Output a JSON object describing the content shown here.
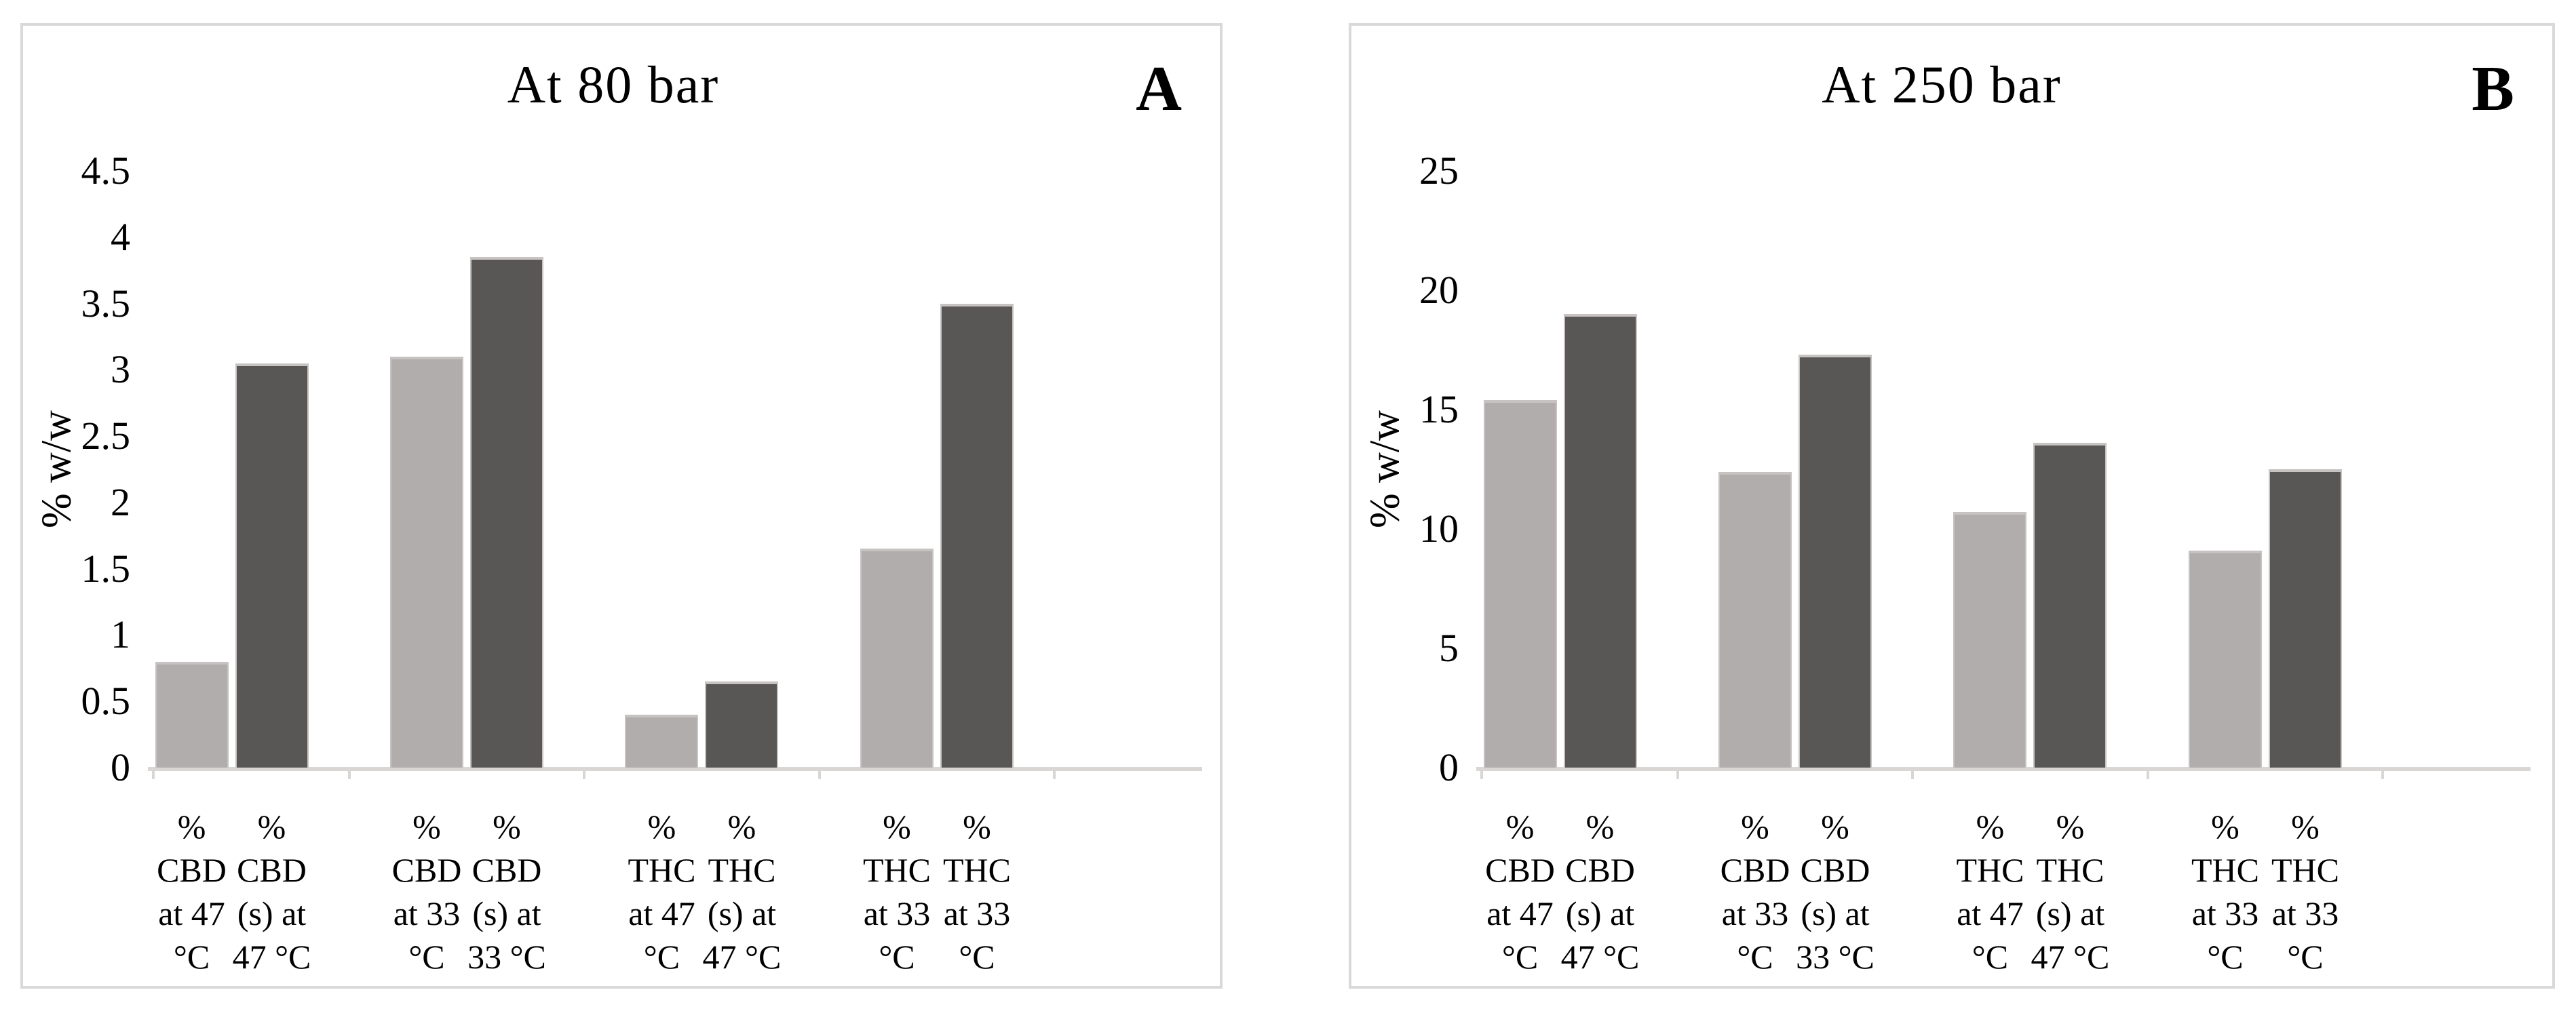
{
  "figure": {
    "background": "#ffffff",
    "panel_letters": [
      "A",
      "B"
    ]
  },
  "colors": {
    "light_bar": "#b1adac",
    "dark_bar": "#595756",
    "bar_edge": "#c6c3c2",
    "axis_line": "#d9d6d5",
    "panel_border": "#d9d9d9",
    "text": "#000000"
  },
  "chart_data": [
    {
      "type": "bar",
      "panel_label": "A",
      "title": "At 80 bar",
      "xlabel": "",
      "ylabel": "% w/w",
      "ylim": [
        0,
        4.5
      ],
      "yticks": [
        "4.5",
        "4",
        "3.5",
        "3",
        "2.5",
        "2",
        "1.5",
        "1",
        "0.5",
        "0"
      ],
      "grid": false,
      "legend": "none",
      "groups": [
        {
          "bars": [
            {
              "label": "% CBD at 47 °C",
              "label_lines": [
                "%",
                "CBD",
                "at 47",
                "°C"
              ],
              "series": "light",
              "value": 0.8
            },
            {
              "label": "% CBD (s) at 47 °C",
              "label_lines": [
                "%",
                "CBD",
                "(s) at",
                "47 °C"
              ],
              "series": "dark",
              "value": 3.05
            }
          ]
        },
        {
          "bars": [
            {
              "label": "% CBD at 33 °C",
              "label_lines": [
                "%",
                "CBD",
                "at 33",
                "°C"
              ],
              "series": "light",
              "value": 3.1
            },
            {
              "label": "% CBD (s) at 33 °C",
              "label_lines": [
                "%",
                "CBD",
                "(s) at",
                "33 °C"
              ],
              "series": "dark",
              "value": 3.85
            }
          ]
        },
        {
          "bars": [
            {
              "label": "% THC at 47 °C",
              "label_lines": [
                "%",
                "THC",
                "at 47",
                "°C"
              ],
              "series": "light",
              "value": 0.4
            },
            {
              "label": "% THC (s) at 47 °C",
              "label_lines": [
                "%",
                "THC",
                "(s) at",
                "47 °C"
              ],
              "series": "dark",
              "value": 0.65
            }
          ]
        },
        {
          "bars": [
            {
              "label": "% THC at 33 °C",
              "label_lines": [
                "%",
                "THC",
                "at 33",
                "°C"
              ],
              "series": "light",
              "value": 1.65
            },
            {
              "label": "% THC at 33 °C",
              "label_lines": [
                "%",
                "THC",
                "at 33",
                "°C"
              ],
              "series": "dark",
              "value": 3.5
            }
          ]
        }
      ]
    },
    {
      "type": "bar",
      "panel_label": "B",
      "title": "At 250 bar",
      "xlabel": "",
      "ylabel": "% w/w",
      "ylim": [
        0,
        25
      ],
      "yticks": [
        "25",
        "20",
        "15",
        "10",
        "5",
        "0"
      ],
      "grid": false,
      "legend": "none",
      "groups": [
        {
          "bars": [
            {
              "label": "% CBD at 47 °C",
              "label_lines": [
                "%",
                "CBD",
                "at 47",
                "°C"
              ],
              "series": "light",
              "value": 15.4
            },
            {
              "label": "% CBD (s) at 47 °C",
              "label_lines": [
                "%",
                "CBD",
                "(s) at",
                "47 °C"
              ],
              "series": "dark",
              "value": 19
            }
          ]
        },
        {
          "bars": [
            {
              "label": "% CBD at 33 °C",
              "label_lines": [
                "%",
                "CBD",
                "at 33",
                "°C"
              ],
              "series": "light",
              "value": 12.4
            },
            {
              "label": "% CBD (s) at 33 °C",
              "label_lines": [
                "%",
                "CBD",
                "(s) at",
                "33 °C"
              ],
              "series": "dark",
              "value": 17.3
            }
          ]
        },
        {
          "bars": [
            {
              "label": "% THC at 47 °C",
              "label_lines": [
                "%",
                "THC",
                "at 47",
                "°C"
              ],
              "series": "light",
              "value": 10.7
            },
            {
              "label": "% THC (s) at 47 °C",
              "label_lines": [
                "%",
                "THC",
                "(s) at",
                "47 °C"
              ],
              "series": "dark",
              "value": 13.6
            }
          ]
        },
        {
          "bars": [
            {
              "label": "% THC at 33 °C",
              "label_lines": [
                "%",
                "THC",
                "at 33",
                "°C"
              ],
              "series": "light",
              "value": 9.1
            },
            {
              "label": "% THC at 33 °C",
              "label_lines": [
                "%",
                "THC",
                "at 33",
                "°C"
              ],
              "series": "dark",
              "value": 12.5
            }
          ]
        }
      ]
    }
  ]
}
